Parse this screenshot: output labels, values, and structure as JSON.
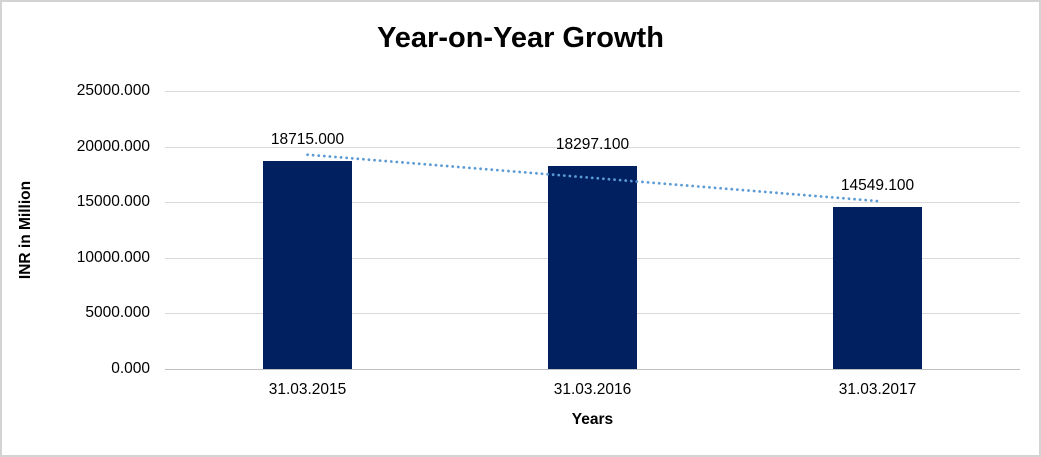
{
  "chart_data": {
    "type": "bar",
    "title": "Year-on-Year Growth",
    "categories": [
      "31.03.2015",
      "31.03.2016",
      "31.03.2017"
    ],
    "values": [
      18715.0,
      18297.1,
      14549.1
    ],
    "data_labels": [
      "18715.000",
      "18297.100",
      "14549.100"
    ],
    "xlabel": "Years",
    "ylabel": "INR in Million",
    "ylim": [
      0,
      25000
    ],
    "ytick_step": 5000,
    "ytick_labels": [
      "0.000",
      "5000.000",
      "10000.000",
      "15000.000",
      "20000.000",
      "25000.000"
    ],
    "grid": true,
    "legend": false,
    "trendline": {
      "type": "linear",
      "style": "dotted"
    },
    "colors": {
      "bar": "#002060",
      "trendline": "#5b9bd5",
      "gridline": "#d9d9d9",
      "axis_line": "#bfbfbf",
      "text": "#000000",
      "border": "#d3d3d3"
    }
  }
}
